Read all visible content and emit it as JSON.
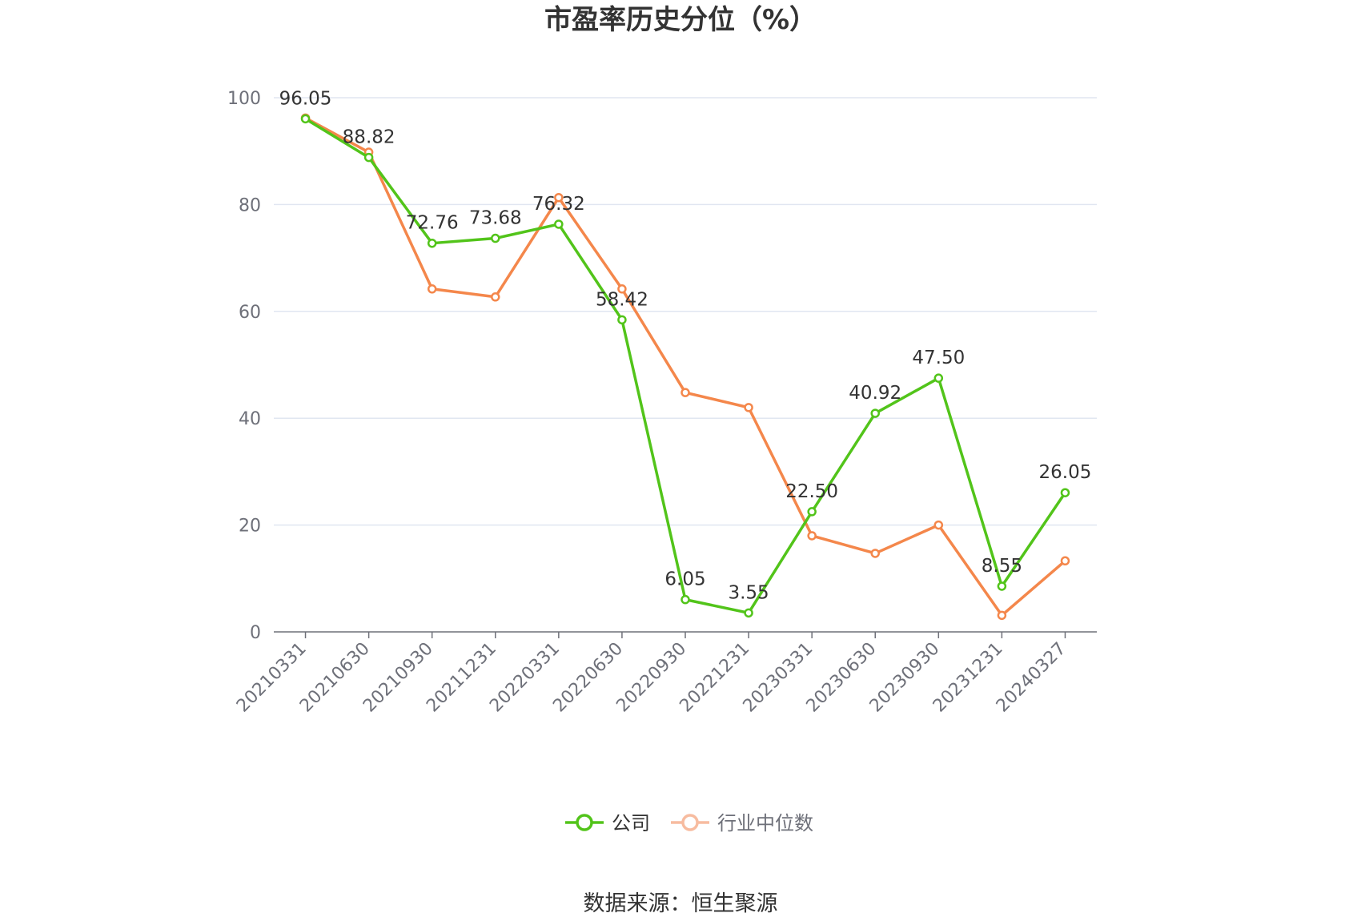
{
  "chart_data": {
    "type": "line",
    "title": "市盈率历史分位（%）",
    "source": "数据来源：恒生聚源",
    "categories": [
      "20210331",
      "20210630",
      "20210930",
      "20211231",
      "20220331",
      "20220630",
      "20220930",
      "20221231",
      "20230331",
      "20230630",
      "20230930",
      "20231231",
      "20240327"
    ],
    "ylim": [
      0,
      100
    ],
    "yticks": [
      0,
      20,
      40,
      60,
      80,
      100
    ],
    "grid": true,
    "legend_position": "bottom",
    "series": [
      {
        "name": "公司",
        "color": "#52c41a",
        "values": [
          96.05,
          88.82,
          72.76,
          73.68,
          76.32,
          58.42,
          6.05,
          3.55,
          22.5,
          40.92,
          47.5,
          8.55,
          26.05
        ],
        "labels": [
          "96.05",
          "88.82",
          "72.76",
          "73.68",
          "76.32",
          "58.42",
          "6.05",
          "3.55",
          "22.50",
          "40.92",
          "47.50",
          "8.55",
          "26.05"
        ]
      },
      {
        "name": "行业中位数",
        "color": "#f4874b",
        "values": [
          96.2,
          89.8,
          64.2,
          62.7,
          81.3,
          64.2,
          44.8,
          42.0,
          18.0,
          14.7,
          20.0,
          3.1,
          13.3
        ]
      }
    ]
  }
}
